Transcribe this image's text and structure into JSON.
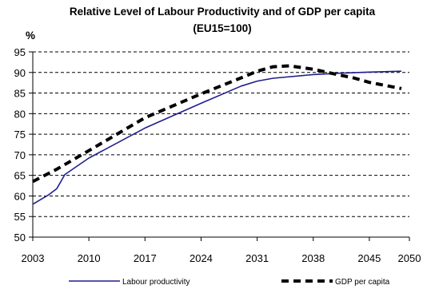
{
  "chart_data": {
    "type": "line",
    "title": "Relative Level of Labour Productivity and of GDP per capita",
    "subtitle": "(EU15=100)",
    "ylabel": "%",
    "xlabel": "",
    "xlim": [
      2003,
      2050
    ],
    "ylim": [
      50,
      95
    ],
    "x_ticks": [
      2003,
      2010,
      2017,
      2024,
      2031,
      2038,
      2045,
      2050
    ],
    "y_ticks": [
      50,
      55,
      60,
      65,
      70,
      75,
      80,
      85,
      90,
      95
    ],
    "grid": "horizontal dashed",
    "legend_position": "bottom",
    "series": [
      {
        "name": "Labour productivity",
        "color": "#1f1f8c",
        "style": "solid",
        "x": [
          2003,
          2005,
          2006,
          2007,
          2010,
          2017,
          2024,
          2029,
          2031,
          2033,
          2038,
          2041,
          2045,
          2049
        ],
        "values": [
          58,
          60.3,
          61.8,
          65.2,
          69.2,
          76.5,
          82.5,
          86.7,
          87.9,
          88.6,
          89.5,
          89.8,
          90.1,
          90.3
        ]
      },
      {
        "name": "GDP per capita",
        "color": "#000000",
        "style": "dashed",
        "x": [
          2003,
          2006,
          2010,
          2017,
          2024,
          2029,
          2031,
          2033,
          2035,
          2038,
          2041,
          2043,
          2045,
          2049
        ],
        "values": [
          63.5,
          66.5,
          71,
          79,
          84.8,
          88.7,
          90.3,
          91.4,
          91.6,
          90.8,
          89.5,
          88.7,
          87.6,
          86.1
        ]
      }
    ]
  }
}
